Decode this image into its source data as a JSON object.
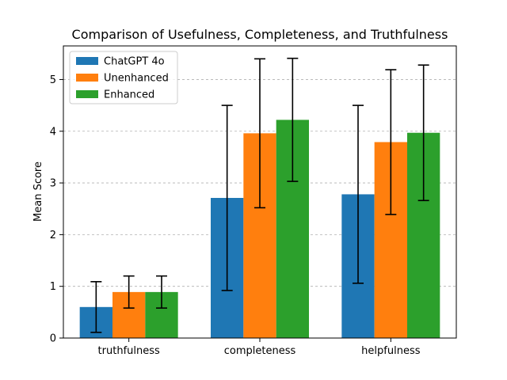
{
  "chart_data": {
    "type": "bar",
    "title": "Comparison of Usefulness, Completeness, and Truthfulness",
    "xlabel": "",
    "ylabel": "Mean Score",
    "categories": [
      "truthfulness",
      "completeness",
      "helpfulness"
    ],
    "ylim": [
      0,
      5.65
    ],
    "yticks": [
      0,
      1,
      2,
      3,
      4,
      5
    ],
    "grid": "y-dashed",
    "legend_position": "top-left",
    "series": [
      {
        "name": "ChatGPT 4o",
        "color": "#1f77b4",
        "values": [
          0.6,
          2.71,
          2.78
        ],
        "errors": [
          0.49,
          1.79,
          1.72
        ]
      },
      {
        "name": "Unenhanced",
        "color": "#ff7f0e",
        "values": [
          0.89,
          3.96,
          3.79
        ],
        "errors": [
          0.31,
          1.44,
          1.4
        ]
      },
      {
        "name": "Enhanced",
        "color": "#2ca02c",
        "values": [
          0.89,
          4.22,
          3.97
        ],
        "errors": [
          0.31,
          1.19,
          1.31
        ]
      }
    ]
  }
}
